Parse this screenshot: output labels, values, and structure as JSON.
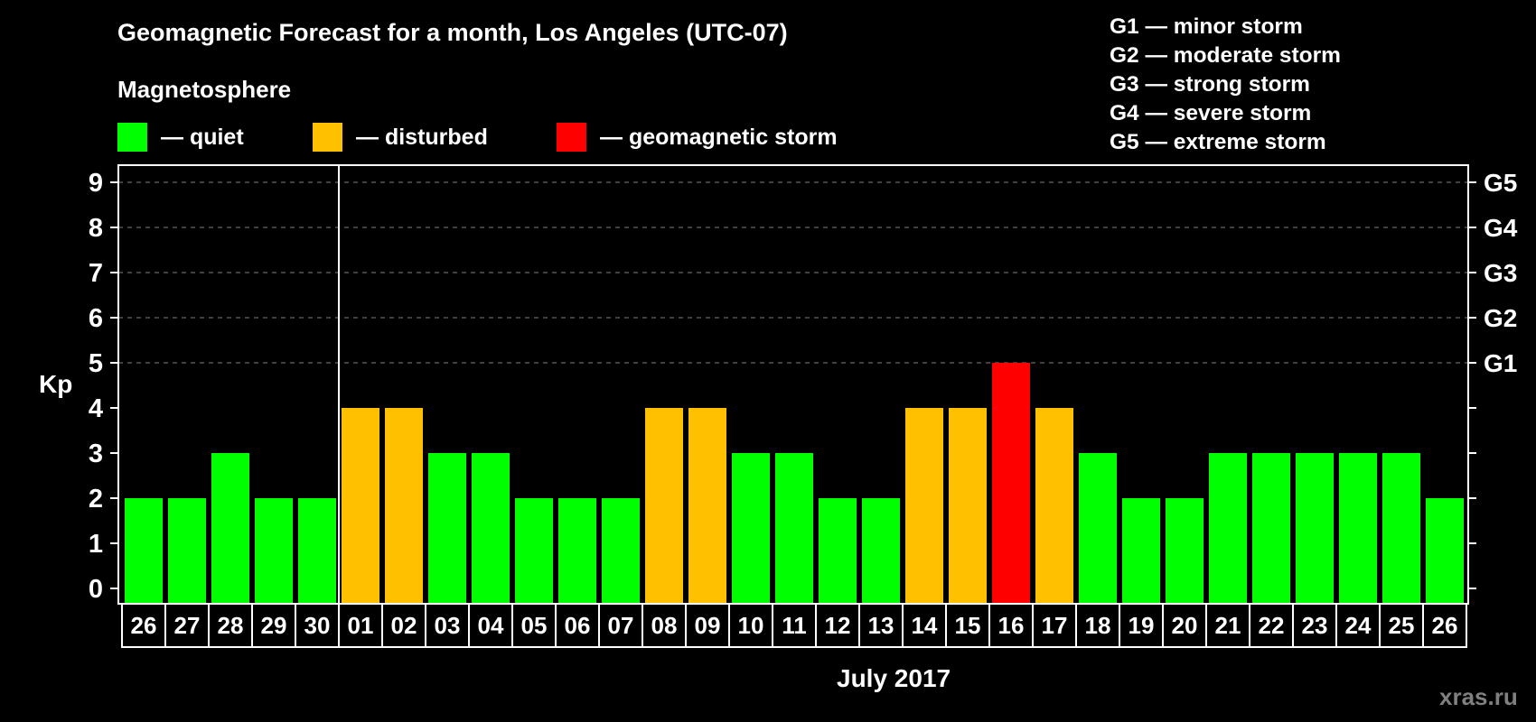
{
  "header": {
    "title": "Geomagnetic Forecast for a month, Los Angeles (UTC-07)",
    "subtitle": "Magnetosphere"
  },
  "legend": {
    "items": [
      {
        "label": "— quiet",
        "color": "#00ff00",
        "x": 130
      },
      {
        "label": "— disturbed",
        "color": "#ffc000",
        "x": 346
      },
      {
        "label": "— geomagnetic storm",
        "color": "#ff0000",
        "x": 616
      }
    ]
  },
  "storm_scale": {
    "items": [
      "G1 — minor storm",
      "G2 — moderate storm",
      "G3 — strong storm",
      "G4 — severe storm",
      "G5 — extreme storm"
    ]
  },
  "axes": {
    "ylabel": "Kp",
    "xlabel": "July 2017",
    "y_ticks": [
      "0",
      "1",
      "2",
      "3",
      "4",
      "5",
      "6",
      "7",
      "8",
      "9"
    ],
    "right_ticks": {
      "5": "G1",
      "6": "G2",
      "7": "G3",
      "8": "G4",
      "9": "G5"
    }
  },
  "watermark": "xras.ru",
  "colors": {
    "quiet": "#00ff00",
    "disturbed": "#ffc000",
    "storm": "#ff0000",
    "background": "#000000",
    "grid": "#808080"
  },
  "chart_data": {
    "type": "bar",
    "title": "Geomagnetic Forecast for a month, Los Angeles (UTC-07)",
    "xlabel": "July 2017",
    "ylabel": "Kp",
    "ylim": [
      0,
      9
    ],
    "grid": true,
    "legend_position": "top",
    "categories": [
      "26",
      "27",
      "28",
      "29",
      "30",
      "01",
      "02",
      "03",
      "04",
      "05",
      "06",
      "07",
      "08",
      "09",
      "10",
      "11",
      "12",
      "13",
      "14",
      "15",
      "16",
      "17",
      "18",
      "19",
      "20",
      "21",
      "22",
      "23",
      "24",
      "25",
      "26"
    ],
    "values": [
      2,
      2,
      3,
      2,
      2,
      4,
      4,
      3,
      3,
      2,
      2,
      2,
      4,
      4,
      3,
      3,
      2,
      2,
      4,
      4,
      5,
      4,
      3,
      2,
      2,
      3,
      3,
      3,
      3,
      3,
      2
    ],
    "status": [
      "quiet",
      "quiet",
      "quiet",
      "quiet",
      "quiet",
      "disturbed",
      "disturbed",
      "quiet",
      "quiet",
      "quiet",
      "quiet",
      "quiet",
      "disturbed",
      "disturbed",
      "quiet",
      "quiet",
      "quiet",
      "quiet",
      "disturbed",
      "disturbed",
      "storm",
      "disturbed",
      "quiet",
      "quiet",
      "quiet",
      "quiet",
      "quiet",
      "quiet",
      "quiet",
      "quiet",
      "quiet"
    ],
    "month_divider_after_index": 4,
    "secondary_axis": {
      "5": "G1",
      "6": "G2",
      "7": "G3",
      "8": "G4",
      "9": "G5"
    }
  }
}
